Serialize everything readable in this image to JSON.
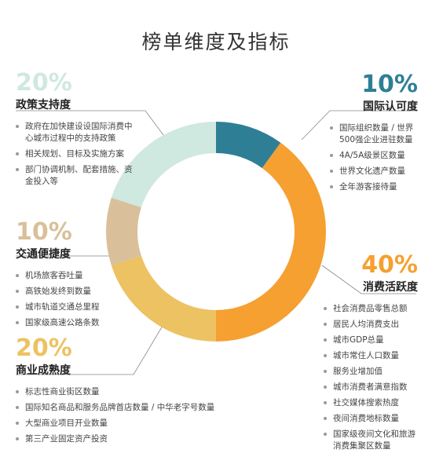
{
  "chart_data": {
    "type": "donut",
    "title": "榜单维度及指标",
    "categories": [
      "国际认可度",
      "消费活跃度",
      "商业成熟度",
      "交通便捷度",
      "政策支持度"
    ],
    "values": [
      10,
      40,
      20,
      10,
      20
    ],
    "value_labels": [
      "10%",
      "40%",
      "20%",
      "10%",
      "20%"
    ],
    "colors": [
      "#2e7f96",
      "#f5a031",
      "#ecc262",
      "#d9c09a",
      "#cfe8e0"
    ],
    "items": [
      [
        "国际组织数量 / 世界500强企业进驻数量",
        "4A/5A级景区数量",
        "世界文化遗产数量",
        "全年游客接待量"
      ],
      [
        "社会消费品零售总额",
        "居民人均消费支出",
        "城市GDP总量",
        "城市常住人口数量",
        "服务业增加值",
        "城市消费者满意指数",
        "社交媒体搜索热度",
        "夜间消费地标数量",
        "国家级夜间文化和旅游消费集聚区数量"
      ],
      [
        "标志性商业街区数量",
        "国际知名商品和服务品牌首店数量 / 中华老字号数量",
        "大型商业项目开业数量",
        "第三产业固定资产投资"
      ],
      [
        "机场旅客吞吐量",
        "高铁始发终到数量",
        "城市轨道交通总里程",
        "国家级高速公路条数"
      ],
      [
        "政府在加快建设设国际消费中心城市过程中的支持政策",
        "相关规划、目标及实施方案",
        "部门协调机制、配套措施、资金投入等"
      ]
    ]
  }
}
